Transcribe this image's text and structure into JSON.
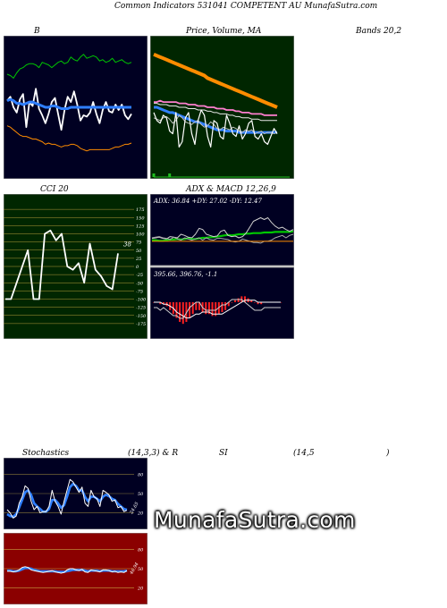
{
  "header": {
    "title": "Common Indicators 531041 COMPETENT AU MunafaSutra.com"
  },
  "titles": {
    "b": "B",
    "price": "Price, Volume, MA",
    "bands": "Bands 20,2",
    "cci": "CCI 20",
    "adx": "ADX & MACD 12,26,9",
    "stoch_a": "Stochastics",
    "stoch_b": "(14,3,3) & R",
    "stoch_c": "SI",
    "stoch_d": "(14,5",
    "stoch_e": ")"
  },
  "watermark": "MunafaSutra.com",
  "colors": {
    "navy": "#000022",
    "darkgreen": "#002600",
    "red_panel": "#8b0000",
    "white_line": "#ffffff",
    "blue_line": "#2f7fff",
    "orange_line": "#ff8c00",
    "green_line": "#00c800",
    "pink_line": "#ff7fd0"
  },
  "chart_data": [
    {
      "id": "bollinger",
      "type": "line",
      "title": "B",
      "ylim": [
        0,
        100
      ],
      "series": [
        {
          "values": [
            75,
            74,
            72,
            76,
            79,
            80,
            82,
            83,
            83,
            82,
            80,
            84,
            83,
            82,
            80,
            82,
            84,
            85,
            83,
            84,
            88,
            86,
            85,
            88,
            90,
            87,
            88,
            89,
            88,
            85,
            86,
            84,
            85,
            87,
            84,
            85,
            86,
            84,
            83,
            84
          ]
        },
        {
          "values": [
            55,
            58,
            50,
            46,
            56,
            60,
            35,
            54,
            51,
            64,
            49,
            44,
            38,
            45,
            54,
            57,
            45,
            33,
            48,
            58,
            54,
            62,
            52,
            40,
            44,
            43,
            46,
            54,
            45,
            38,
            48,
            54,
            47,
            46,
            52,
            48,
            52,
            44,
            41,
            45
          ]
        },
        {
          "values": [
            55,
            56,
            55,
            53,
            53,
            52,
            53,
            54,
            54,
            53,
            52,
            51,
            50,
            50,
            51,
            51,
            50,
            49,
            49,
            49,
            50,
            50,
            50,
            50,
            50,
            50,
            50,
            50,
            50,
            50,
            50,
            50,
            50,
            50,
            50,
            50,
            50,
            50,
            50,
            50
          ]
        },
        {
          "values": [
            36,
            35,
            33,
            31,
            29,
            28,
            28,
            27,
            26,
            26,
            25,
            24,
            22,
            23,
            22,
            22,
            21,
            20,
            21,
            21,
            22,
            22,
            21,
            19,
            18,
            17,
            18,
            18,
            18,
            18,
            18,
            18,
            18,
            19,
            20,
            20,
            21,
            22,
            22,
            23
          ]
        }
      ]
    },
    {
      "id": "price_volume_ma",
      "type": "line",
      "title": "Price, Volume, MA",
      "ylim": [
        0,
        100
      ],
      "series": [
        {
          "values": [
            90,
            89,
            88,
            87,
            86,
            85,
            84,
            83,
            82,
            81,
            80,
            79,
            78,
            77,
            76,
            75,
            74,
            72,
            71,
            70,
            69,
            68,
            67,
            66,
            65,
            64,
            63,
            62,
            61,
            60,
            59,
            58,
            57,
            56,
            55,
            54,
            53,
            52,
            51,
            50
          ]
        },
        {
          "values": [
            54,
            54,
            55,
            54,
            54,
            54,
            54,
            54,
            53,
            53,
            53,
            52,
            52,
            52,
            51,
            51,
            51,
            50,
            50,
            50,
            49,
            49,
            49,
            48,
            48,
            48,
            47,
            47,
            46,
            46,
            46,
            45,
            45,
            45,
            45,
            44,
            44,
            44,
            44,
            44
          ]
        },
        {
          "values": [
            53,
            53,
            52,
            52,
            52,
            51,
            51,
            51,
            50,
            50,
            50,
            49,
            49,
            49,
            48,
            48,
            48,
            47,
            47,
            46,
            46,
            45,
            45,
            45,
            44,
            44,
            43,
            43,
            42,
            42,
            42,
            41,
            41,
            41,
            40,
            40,
            40,
            40,
            40,
            40
          ]
        },
        {
          "values": [
            50,
            50,
            49,
            48,
            47,
            46,
            46,
            45,
            44,
            43,
            42,
            41,
            40,
            39,
            39,
            38,
            37,
            36,
            35,
            34,
            33,
            33,
            33,
            32,
            32,
            32,
            32,
            31,
            31,
            31,
            31,
            31,
            31,
            31,
            31,
            31,
            31,
            31,
            31,
            31
          ]
        },
        {
          "values": [
            42,
            41,
            40,
            42,
            43,
            41,
            38,
            40,
            44,
            42,
            39,
            38,
            37,
            39,
            40,
            37,
            35,
            36,
            39,
            37,
            34,
            33,
            35,
            34,
            33,
            35,
            34,
            32,
            31,
            33,
            32,
            33,
            30,
            31,
            32,
            30,
            31,
            31,
            30,
            31
          ]
        },
        {
          "values": [
            46,
            40,
            38,
            44,
            42,
            32,
            30,
            46,
            20,
            24,
            42,
            46,
            30,
            22,
            40,
            48,
            44,
            28,
            20,
            40,
            38,
            28,
            26,
            44,
            38,
            30,
            28,
            36,
            26,
            30,
            38,
            40,
            28,
            26,
            30,
            24,
            22,
            28,
            34,
            30
          ]
        }
      ],
      "volume": [
        2,
        0,
        0,
        0,
        0,
        2,
        0,
        0,
        0,
        0,
        0,
        0,
        0,
        0,
        0,
        0,
        0,
        0,
        0,
        0,
        0,
        0,
        0,
        0,
        0,
        0,
        0,
        0,
        0,
        0,
        0,
        0,
        0,
        0,
        0,
        0,
        0,
        0,
        0,
        0
      ]
    },
    {
      "id": "cci",
      "type": "line",
      "title": "CCI 20",
      "ylim": [
        -200,
        200
      ],
      "yticks": [
        175,
        150,
        125,
        100,
        75,
        50,
        25,
        0,
        -25,
        -50,
        -75,
        -100,
        -125,
        -150,
        -175
      ],
      "last_label": "38",
      "series": [
        {
          "values": [
            -100,
            -100,
            -50,
            0,
            50,
            -100,
            -100,
            100,
            110,
            80,
            100,
            0,
            -10,
            10,
            -50,
            70,
            -10,
            -30,
            -60,
            -70,
            40
          ]
        }
      ]
    },
    {
      "id": "adx_macd",
      "type": "line",
      "title": "ADX & MACD 12,26,9",
      "adx_label": "ADX: 36.84 +DY: 27.02 -DY: 12.47",
      "macd_label": "395.66, 396.76, -1.1",
      "series": [
        {
          "values": [
            40,
            40,
            39,
            39,
            40,
            41,
            41,
            42,
            41,
            42,
            43,
            42,
            42,
            43,
            44,
            44,
            45,
            45,
            46,
            47,
            48,
            49,
            48,
            49,
            50,
            50,
            51,
            51,
            52,
            52,
            52,
            53,
            53,
            53,
            54,
            54,
            54,
            54,
            54,
            55
          ]
        },
        {
          "values": [
            43,
            44,
            45,
            43,
            42,
            46,
            45,
            44,
            50,
            48,
            45,
            44,
            50,
            60,
            58,
            50,
            48,
            46,
            47,
            55,
            57,
            48,
            46,
            47,
            44,
            46,
            52,
            62,
            72,
            75,
            78,
            75,
            78,
            70,
            64,
            60,
            62,
            58,
            55,
            58
          ]
        },
        {
          "values": [
            44,
            45,
            46,
            44,
            43,
            41,
            45,
            42,
            40,
            44,
            42,
            40,
            42,
            44,
            40,
            44,
            41,
            40,
            43,
            43,
            42,
            41,
            38,
            37,
            38,
            42,
            40,
            38,
            36,
            36,
            35,
            38,
            38,
            40,
            44,
            46,
            48,
            44,
            48,
            50
          ]
        },
        {
          "values": [
            38,
            38,
            38,
            38,
            38,
            38,
            38,
            38,
            38,
            38,
            38,
            38,
            38,
            38,
            38,
            38,
            38,
            38,
            38,
            38,
            38,
            38,
            38,
            38,
            38,
            38,
            38,
            38,
            38,
            38,
            38,
            38,
            38,
            38,
            38,
            38,
            38,
            38,
            38,
            38
          ]
        }
      ],
      "macd_series": [
        {
          "values": [
            0,
            0,
            -1,
            -1,
            -2,
            -4,
            -6,
            -8,
            -10,
            -11,
            -10,
            -8,
            -6,
            -4,
            -4,
            -5,
            -6,
            -6,
            -7,
            -7,
            -6,
            -5,
            -4,
            -2,
            0,
            1,
            2,
            3,
            3,
            2,
            1,
            0,
            -1,
            -1,
            0,
            0,
            0,
            0,
            0,
            0
          ]
        },
        {
          "values": [
            0,
            0,
            0,
            -1,
            -1,
            -2,
            -3,
            -5,
            -6,
            -7,
            -8,
            -8,
            -7,
            -6,
            -6,
            -5,
            -5,
            -5,
            -6,
            -6,
            -6,
            -6,
            -5,
            -4,
            -3,
            -2,
            -1,
            0,
            1,
            1,
            1,
            1,
            0,
            0,
            0,
            0,
            0,
            0,
            0,
            0
          ]
        },
        {
          "values": [
            0,
            0,
            -1,
            0,
            -1,
            -2,
            -3,
            -3,
            -4,
            -4,
            -2,
            0,
            1,
            2,
            2,
            0,
            -1,
            -1,
            -1,
            -1,
            0,
            1,
            1,
            2,
            3,
            3,
            3,
            3,
            2,
            1,
            0,
            -1,
            -1,
            -1,
            0,
            0,
            0,
            0,
            0,
            0
          ]
        }
      ]
    },
    {
      "id": "stochastics",
      "type": "line",
      "title": "Stochastics (14,3,3)",
      "yticks": [
        80,
        50,
        20
      ],
      "last_label": "24.65",
      "ylim": [
        0,
        100
      ],
      "series": [
        {
          "values": [
            25,
            20,
            12,
            15,
            35,
            45,
            62,
            58,
            38,
            25,
            30,
            20,
            22,
            22,
            30,
            55,
            38,
            30,
            18,
            38,
            55,
            72,
            68,
            60,
            52,
            60,
            35,
            30,
            55,
            45,
            42,
            30,
            55,
            52,
            48,
            38,
            40,
            28,
            30,
            22,
            24
          ]
        },
        {
          "values": [
            18,
            15,
            14,
            18,
            28,
            40,
            52,
            55,
            48,
            35,
            30,
            26,
            22,
            22,
            26,
            40,
            40,
            35,
            28,
            32,
            45,
            60,
            65,
            62,
            55,
            55,
            45,
            38,
            45,
            45,
            42,
            38,
            45,
            48,
            46,
            42,
            40,
            34,
            30,
            26,
            25
          ]
        }
      ]
    },
    {
      "id": "rsi",
      "type": "line",
      "title": "RSI (14,5)",
      "yticks": [
        80,
        50,
        20
      ],
      "last_label": "46.94",
      "ylim": [
        0,
        100
      ],
      "series": [
        {
          "values": [
            46,
            46,
            45,
            46,
            48,
            52,
            53,
            52,
            48,
            47,
            46,
            45,
            44,
            45,
            46,
            47,
            45,
            44,
            43,
            44,
            48,
            50,
            50,
            48,
            47,
            49,
            45,
            44,
            48,
            47,
            46,
            45,
            48,
            48,
            47,
            45,
            46,
            44,
            45,
            44,
            47
          ]
        },
        {
          "values": [
            47,
            47,
            46,
            46,
            47,
            49,
            51,
            51,
            50,
            48,
            47,
            46,
            46,
            46,
            46,
            46,
            46,
            45,
            45,
            45,
            46,
            47,
            48,
            48,
            48,
            48,
            47,
            46,
            47,
            47,
            47,
            46,
            47,
            47,
            47,
            46,
            46,
            46,
            46,
            46,
            47
          ]
        }
      ]
    }
  ]
}
